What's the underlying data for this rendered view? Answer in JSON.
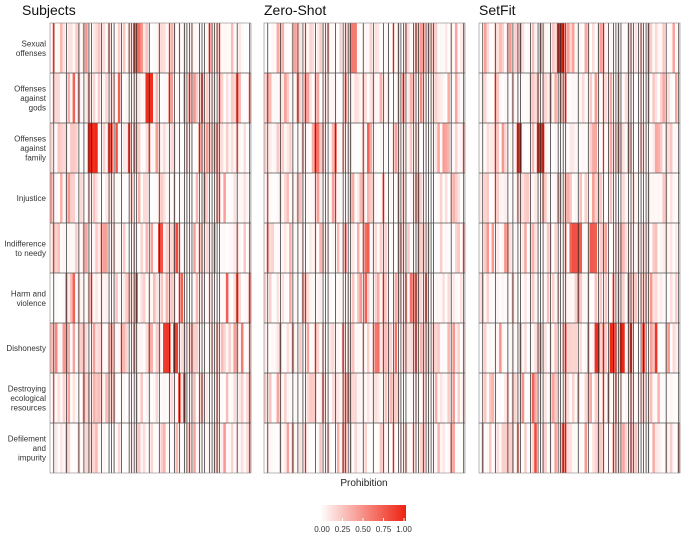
{
  "chart_data": {
    "type": "heatmap",
    "panels": [
      "Subjects",
      "Zero-Shot",
      "SetFit"
    ],
    "rows": [
      [
        "Sexual",
        "offenses"
      ],
      [
        "Offenses",
        "against",
        "gods"
      ],
      [
        "Offenses",
        "against",
        "family"
      ],
      [
        "Injustice"
      ],
      [
        "Indifference",
        "to needy"
      ],
      [
        "Harm and",
        "violence"
      ],
      [
        "Dishonesty"
      ],
      [
        "Destroying",
        "ecological",
        "resources"
      ],
      [
        "Defilement",
        "and",
        "impurity"
      ]
    ],
    "n_columns": 80,
    "xlabel": "Prohibition",
    "color_scale": {
      "low": "#ffffff",
      "high": "#ee2211",
      "ticks": [
        "0.00",
        "0.25",
        "0.50",
        "0.75",
        "1.00"
      ],
      "range": [
        0,
        1
      ]
    },
    "hot_spots": {
      "Subjects": [
        {
          "row": 0,
          "cols": [
            33,
            34,
            35
          ],
          "value": 0.75
        },
        {
          "row": 1,
          "cols": [
            38,
            39,
            40
          ],
          "value": 1.0
        },
        {
          "row": 1,
          "cols": [
            9,
            27,
            60,
            74
          ],
          "value": 0.8
        },
        {
          "row": 2,
          "cols": [
            15,
            16,
            17,
            18
          ],
          "value": 1.0
        },
        {
          "row": 2,
          "cols": [
            23,
            24,
            26,
            31
          ],
          "value": 0.85
        },
        {
          "row": 4,
          "cols": [
            43,
            44,
            50
          ],
          "value": 0.85
        },
        {
          "row": 5,
          "cols": [
            9,
            34,
            52,
            70,
            74
          ],
          "value": 0.8
        },
        {
          "row": 6,
          "cols": [
            45,
            46,
            47,
            49,
            50
          ],
          "value": 0.95
        },
        {
          "row": 6,
          "cols": [
            2,
            76
          ],
          "value": 0.6
        },
        {
          "row": 7,
          "cols": [
            51,
            53
          ],
          "value": 0.9
        }
      ],
      "Zero-Shot": [
        {
          "row": 0,
          "cols": [
            34,
            35,
            36
          ],
          "value": 0.6
        },
        {
          "row": 1,
          "cols": [
            13,
            55,
            62
          ],
          "value": 0.6
        },
        {
          "row": 2,
          "cols": [
            20,
            21,
            28,
            41
          ],
          "value": 0.7
        },
        {
          "row": 4,
          "cols": [
            40,
            41
          ],
          "value": 0.75
        },
        {
          "row": 5,
          "cols": [
            40,
            58,
            60,
            64
          ],
          "value": 0.75
        },
        {
          "row": 6,
          "cols": [
            44,
            45,
            52,
            60
          ],
          "value": 0.7
        }
      ],
      "SetFit": [
        {
          "row": 0,
          "cols": [
            31,
            32,
            33
          ],
          "value": 1.0
        },
        {
          "row": 2,
          "cols": [
            15,
            16,
            23,
            24,
            25
          ],
          "value": 1.0
        },
        {
          "row": 4,
          "cols": [
            36,
            37,
            38,
            39,
            40,
            44,
            45,
            46
          ],
          "value": 0.8
        },
        {
          "row": 6,
          "cols": [
            46,
            47,
            52,
            53,
            56,
            57,
            60,
            65,
            70
          ],
          "value": 1.0
        },
        {
          "row": 7,
          "cols": [
            21
          ],
          "value": 0.8
        },
        {
          "row": 8,
          "cols": [
            22,
            33
          ],
          "value": 0.85
        }
      ]
    }
  }
}
